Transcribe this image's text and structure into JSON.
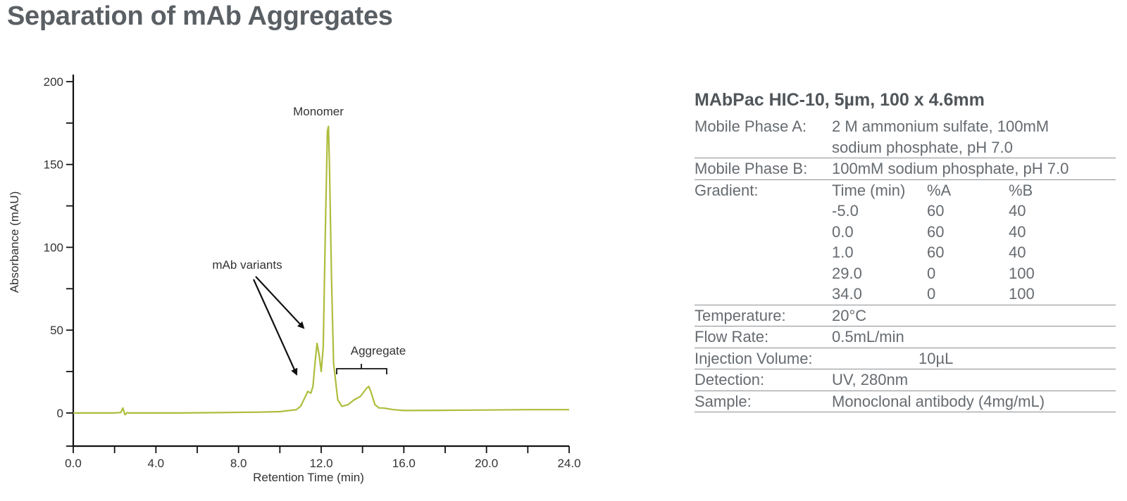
{
  "page": {
    "title": "Separation of mAb Aggregates"
  },
  "colors": {
    "trace": "#aebd3c",
    "axis": "#111111",
    "text": "#333333",
    "panel_text": "#666b70"
  },
  "chart_data": {
    "type": "line",
    "title": "",
    "xlabel": "Retention Time (min)",
    "ylabel": "Absorbance (mAU)",
    "xlim": [
      0,
      24
    ],
    "ylim": [
      -20,
      200
    ],
    "xticks": [
      0,
      4,
      8,
      12,
      16,
      20,
      24
    ],
    "xtick_labels": [
      "0.0",
      "4.0",
      "8.0",
      "12.0",
      "16.0",
      "20.0",
      "24.0"
    ],
    "yticks": [
      0,
      50,
      100,
      150,
      200
    ],
    "ytick_labels": [
      "0",
      "50",
      "100",
      "150",
      "200"
    ],
    "grid": false,
    "series": [
      {
        "x": [
          0,
          1,
          2,
          2.3,
          2.4,
          2.45,
          2.5,
          2.55,
          2.6,
          2.7,
          3,
          5,
          7,
          9,
          10,
          10.8,
          11,
          11.2,
          11.35,
          11.5,
          11.6,
          11.7,
          11.8,
          11.9,
          12.0,
          12.1,
          12.2,
          12.3,
          12.35,
          12.4,
          12.5,
          12.6,
          12.8,
          13.0,
          13.3,
          13.6,
          13.9,
          14.2,
          14.3,
          14.4,
          14.6,
          14.8,
          15.0,
          15.5,
          16,
          18,
          20,
          22,
          24
        ],
        "y": [
          0,
          0,
          0,
          0.3,
          3,
          1,
          -1,
          -0.5,
          0.2,
          0,
          0,
          0,
          0.2,
          0.5,
          0.8,
          2,
          4,
          9,
          13,
          12,
          16,
          30,
          42,
          35,
          25,
          40,
          110,
          170,
          173,
          150,
          80,
          30,
          8,
          4,
          5,
          8,
          10,
          15,
          16,
          13,
          5,
          3,
          3,
          2,
          1.5,
          1.6,
          1.8,
          2,
          2
        ]
      }
    ],
    "annotations": [
      {
        "text": "Monomer"
      },
      {
        "text": "mAb variants"
      },
      {
        "text": "Aggregate"
      }
    ]
  },
  "method": {
    "title": "MAbPac HIC-10, 5µm, 100 x 4.6mm",
    "mobile_a_label": "Mobile Phase A:",
    "mobile_a_value_1": "2 M ammonium sulfate, 100mM",
    "mobile_a_value_2": "sodium phosphate, pH 7.0",
    "mobile_b_label": "Mobile Phase B:",
    "mobile_b_value": "100mM sodium phosphate, pH 7.0",
    "gradient_label": "Gradient:",
    "gradient_headers": [
      "Time (min)",
      "%A",
      "%B"
    ],
    "gradient_rows": [
      [
        "-5.0",
        "60",
        "40"
      ],
      [
        "0.0",
        "60",
        "40"
      ],
      [
        "1.0",
        "60",
        "40"
      ],
      [
        "29.0",
        "0",
        "100"
      ],
      [
        "34.0",
        "0",
        "100"
      ]
    ],
    "temperature_label": "Temperature:",
    "temperature_value": "20°C",
    "flow_label": "Flow Rate:",
    "flow_value": "0.5mL/min",
    "injection_label": "Injection Volume:",
    "injection_value": "10µL",
    "detection_label": "Detection:",
    "detection_value": "UV, 280nm",
    "sample_label": "Sample:",
    "sample_value": "Monoclonal antibody (4mg/mL)"
  }
}
